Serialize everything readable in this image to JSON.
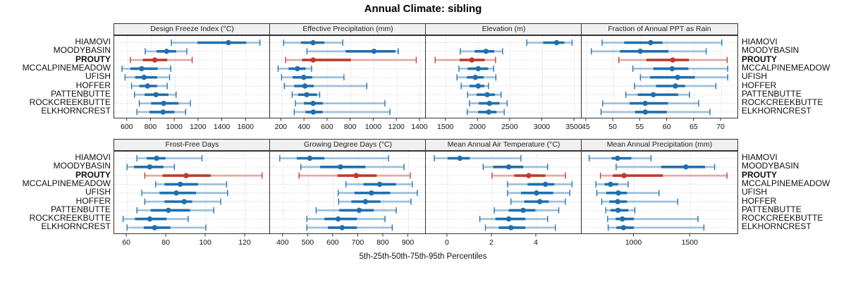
{
  "title": "Annual Climate: sibling",
  "xlabel": "5th-25th-50th-75th-95th Percentiles",
  "chart_data": {
    "type": "dotplot",
    "title": "Annual Climate: sibling",
    "xlabel": "5th-25th-50th-75th-95th Percentiles",
    "percentiles": [
      5,
      25,
      50,
      75,
      95
    ],
    "legend_position": "none",
    "grid": "dotted",
    "sites": [
      "HIAMOVI",
      "MOODYBASIN",
      "PROUTY",
      "MCCALPINEMEADOW",
      "UFISH",
      "HOFFER",
      "PATTENBUTTE",
      "ROCKCREEKBUTTE",
      "ELKHORNCREST"
    ],
    "highlight_site": "PROUTY",
    "colors": {
      "series_main": "#1e6fae",
      "series_light": "#a8cce6",
      "highlight_main": "#c0392b",
      "highlight_light": "#e7a49e",
      "grid": "#c8c8c8",
      "panel_header_bg": "#f0f0f0",
      "border": "#333333"
    },
    "panels": [
      {
        "title": "Design Freeze Index (°C)",
        "xlim": [
          489,
          1800
        ],
        "ticks": [
          600,
          800,
          1000,
          1200,
          1400,
          1600
        ],
        "values": [
          [
            970,
            1190,
            1450,
            1600,
            1715
          ],
          [
            750,
            845,
            930,
            1010,
            1100
          ],
          [
            625,
            730,
            830,
            935,
            1145
          ],
          [
            555,
            625,
            720,
            855,
            965
          ],
          [
            580,
            665,
            740,
            850,
            955
          ],
          [
            635,
            700,
            770,
            850,
            935
          ],
          [
            660,
            745,
            840,
            945,
            1010
          ],
          [
            700,
            800,
            905,
            1030,
            1130
          ],
          [
            680,
            785,
            900,
            995,
            1090
          ]
        ]
      },
      {
        "title": "Effective Precipitation (mm)",
        "xlim": [
          100,
          1449
        ],
        "ticks": [
          200,
          400,
          600,
          800,
          1000,
          1200,
          1400
        ],
        "values": [
          [
            218,
            368,
            473,
            571,
            730
          ],
          [
            420,
            755,
            1000,
            1185,
            1210
          ],
          [
            235,
            377,
            473,
            800,
            1366
          ],
          [
            170,
            260,
            337,
            408,
            460
          ],
          [
            200,
            296,
            392,
            465,
            740
          ],
          [
            224,
            310,
            402,
            479,
            938
          ],
          [
            292,
            343,
            418,
            506,
            530
          ],
          [
            320,
            394,
            473,
            557,
            1095
          ],
          [
            310,
            408,
            475,
            555,
            1138
          ]
        ]
      },
      {
        "title": "Elevation (m)",
        "xlim": [
          1185,
          3609
        ],
        "ticks": [
          1500,
          2000,
          2500,
          3000,
          3500
        ],
        "values": [
          [
            2755,
            3010,
            3220,
            3340,
            3460
          ],
          [
            1720,
            1945,
            2120,
            2250,
            2380
          ],
          [
            1330,
            1710,
            1900,
            2100,
            2270
          ],
          [
            1700,
            1835,
            2000,
            2155,
            2240
          ],
          [
            1670,
            1825,
            1955,
            2085,
            2275
          ],
          [
            1735,
            1865,
            2000,
            2095,
            2160
          ],
          [
            1835,
            1975,
            2140,
            2260,
            2355
          ],
          [
            1865,
            2010,
            2175,
            2330,
            2450
          ],
          [
            1830,
            2000,
            2165,
            2285,
            2405
          ]
        ]
      },
      {
        "title": "Fraction of Annual PPT as Rain",
        "xlim": [
          44.1,
          73.0
        ],
        "ticks": [
          45,
          50,
          55,
          60,
          65,
          70
        ],
        "values": [
          [
            47.9,
            52.0,
            56.9,
            59.1,
            70.1
          ],
          [
            45.9,
            51.2,
            55.0,
            60.2,
            67.2
          ],
          [
            51.0,
            56.1,
            61.0,
            64.0,
            71.1
          ],
          [
            53.6,
            57.4,
            60.9,
            63.9,
            71.2
          ],
          [
            55.0,
            56.8,
            61.9,
            65.1,
            71.2
          ],
          [
            53.9,
            57.9,
            61.5,
            63.3,
            69.0
          ],
          [
            52.3,
            54.5,
            57.4,
            62.0,
            64.1
          ],
          [
            48.0,
            53.0,
            55.9,
            60.1,
            65.8
          ],
          [
            47.7,
            54.0,
            55.9,
            59.9,
            67.9
          ]
        ]
      },
      {
        "title": "Frost-Free Days",
        "xlim": [
          53.5,
          132.5
        ],
        "ticks": [
          60,
          80,
          100,
          120
        ],
        "values": [
          [
            65,
            70,
            75,
            79.5,
            98
          ],
          [
            60,
            63.5,
            71.5,
            78.5,
            84
          ],
          [
            69,
            78,
            90,
            102.5,
            128.5
          ],
          [
            74.5,
            79,
            87,
            96,
            110.5
          ],
          [
            67.5,
            76.5,
            85,
            95,
            111
          ],
          [
            69,
            79,
            89,
            93,
            107.5
          ],
          [
            65,
            72,
            81,
            92,
            104
          ],
          [
            58,
            64,
            71.5,
            80,
            91
          ],
          [
            60,
            68.5,
            74,
            82,
            100
          ]
        ]
      },
      {
        "title": "Growing Degree Days (°C)",
        "xlim": [
          347,
          969
        ],
        "ticks": [
          400,
          500,
          600,
          700,
          800,
          900
        ],
        "values": [
          [
            386,
            454,
            506,
            564,
            820
          ],
          [
            470,
            547,
            628,
            728,
            882
          ],
          [
            463,
            616,
            691,
            773,
            907
          ],
          [
            650,
            720,
            785,
            850,
            915
          ],
          [
            619,
            684,
            752,
            827,
            935
          ],
          [
            621,
            672,
            728,
            788,
            910
          ],
          [
            531,
            623,
            703,
            761,
            851
          ],
          [
            494,
            564,
            619,
            694,
            806
          ],
          [
            494,
            578,
            635,
            694,
            835
          ]
        ]
      },
      {
        "title": "Mean Annual Air Temperature (°C)",
        "xlim": [
          -0.98,
          6.03
        ],
        "ticks": [
          0,
          2,
          4
        ],
        "values": [
          [
            -0.6,
            0.0,
            0.55,
            1.0,
            3.3
          ],
          [
            1.6,
            2.05,
            2.75,
            3.4,
            4.5
          ],
          [
            2.0,
            3.0,
            3.65,
            4.4,
            5.3
          ],
          [
            2.7,
            3.6,
            4.4,
            4.8,
            5.6
          ],
          [
            2.7,
            3.3,
            4.0,
            4.75,
            5.5
          ],
          [
            2.85,
            3.45,
            4.15,
            4.55,
            5.3
          ],
          [
            2.1,
            2.75,
            3.4,
            3.95,
            5.0
          ],
          [
            1.45,
            2.15,
            2.75,
            3.5,
            4.5
          ],
          [
            1.7,
            2.3,
            2.85,
            3.5,
            4.85
          ]
        ]
      },
      {
        "title": "Mean Annual Precipitation (mm)",
        "xlim": [
          533,
          1918
        ],
        "ticks": [
          1000,
          1500
        ],
        "values": [
          [
            600,
            800,
            853,
            975,
            1150
          ],
          [
            840,
            1240,
            1460,
            1630,
            1715
          ],
          [
            700,
            810,
            910,
            1255,
            1825
          ],
          [
            660,
            737,
            790,
            857,
            947
          ],
          [
            668,
            752,
            859,
            937,
            1221
          ],
          [
            712,
            779,
            853,
            937,
            1388
          ],
          [
            748,
            790,
            857,
            947,
            1006
          ],
          [
            764,
            836,
            895,
            996,
            1567
          ],
          [
            769,
            842,
            905,
            996,
            1620
          ]
        ]
      }
    ]
  }
}
